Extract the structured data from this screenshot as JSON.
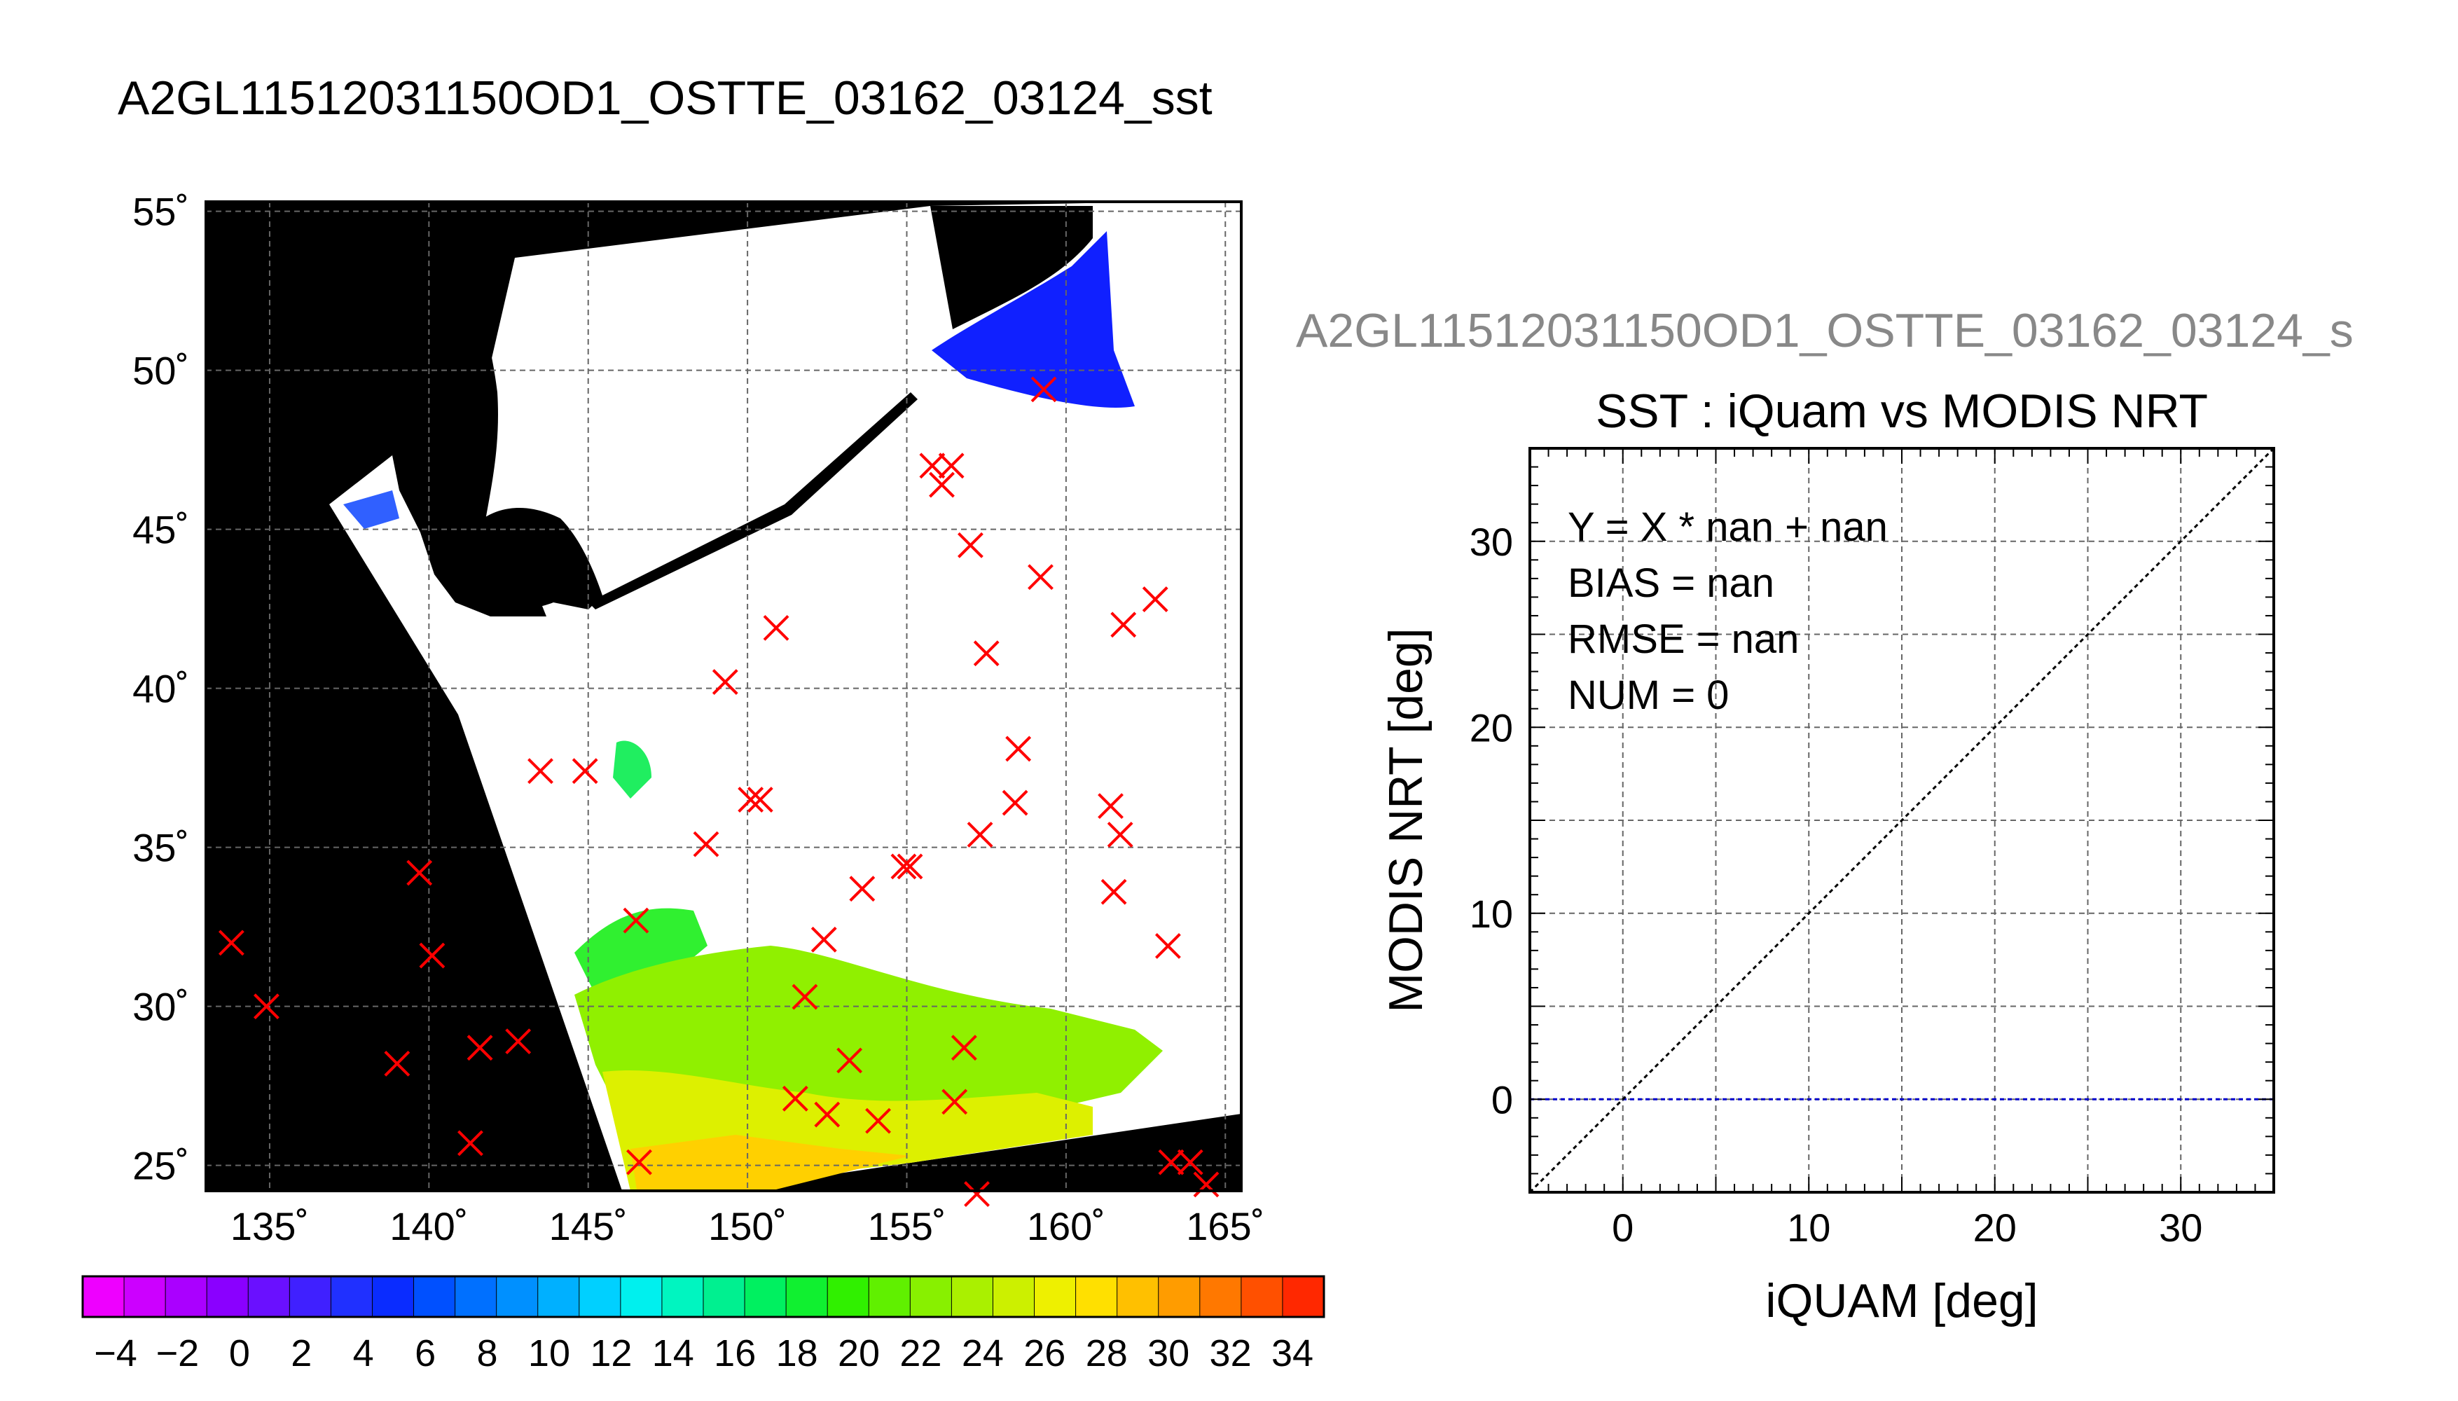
{
  "main_title": "A2GL11512031150OD1_OSTTE_03162_03124_sst",
  "right_title": "A2GL11512031150OD1_OSTTE_03162_03124_s",
  "colors": {
    "land": "#000000",
    "no_data": "#ffffff",
    "marker": "#ff0000",
    "grid": "#555555",
    "zero_line": "#0000cc",
    "diag_line": "#000000"
  },
  "chart_data": [
    {
      "type": "scatter",
      "xlim": [
        133,
        165.5
      ],
      "ylim": [
        24.2,
        55.3
      ],
      "x_ticks": [
        135,
        140,
        145,
        150,
        155,
        160,
        165
      ],
      "x_tick_labels": [
        "135˚",
        "140˚",
        "145˚",
        "150˚",
        "155˚",
        "160˚",
        "165˚"
      ],
      "y_ticks": [
        25,
        30,
        35,
        40,
        45,
        50,
        55
      ],
      "y_tick_labels": [
        "25˚",
        "30˚",
        "35˚",
        "40˚",
        "45˚",
        "50˚",
        "55˚"
      ],
      "grid": true,
      "series": [
        {
          "marker": "x",
          "points": [
            [
              133.8,
              32.0
            ],
            [
              134.9,
              30.0
            ],
            [
              139.0,
              28.2
            ],
            [
              139.7,
              34.2
            ],
            [
              140.1,
              31.6
            ],
            [
              141.3,
              25.7
            ],
            [
              141.6,
              28.7
            ],
            [
              142.8,
              28.9
            ],
            [
              143.5,
              37.4
            ],
            [
              144.9,
              37.4
            ],
            [
              146.5,
              32.7
            ],
            [
              146.6,
              25.1
            ],
            [
              148.7,
              35.1
            ],
            [
              149.3,
              40.2
            ],
            [
              150.1,
              36.5
            ],
            [
              150.4,
              36.5
            ],
            [
              150.9,
              41.9
            ],
            [
              151.5,
              27.1
            ],
            [
              151.8,
              30.3
            ],
            [
              152.4,
              32.1
            ],
            [
              152.5,
              26.6
            ],
            [
              153.2,
              28.3
            ],
            [
              153.6,
              33.7
            ],
            [
              154.1,
              26.4
            ],
            [
              154.9,
              34.4
            ],
            [
              155.1,
              34.4
            ],
            [
              155.8,
              47.0
            ],
            [
              156.1,
              46.4
            ],
            [
              156.4,
              47.0
            ],
            [
              156.5,
              27.0
            ],
            [
              156.8,
              28.7
            ],
            [
              157.0,
              44.5
            ],
            [
              157.2,
              24.1
            ],
            [
              157.3,
              35.4
            ],
            [
              157.5,
              41.1
            ],
            [
              158.4,
              36.4
            ],
            [
              158.5,
              38.1
            ],
            [
              159.2,
              43.5
            ],
            [
              159.3,
              49.4
            ],
            [
              161.4,
              36.3
            ],
            [
              161.5,
              33.6
            ],
            [
              161.7,
              35.4
            ],
            [
              161.8,
              42.0
            ],
            [
              162.8,
              42.8
            ],
            [
              163.2,
              31.9
            ],
            [
              163.3,
              25.1
            ],
            [
              163.9,
              25.1
            ],
            [
              164.4,
              24.4
            ]
          ]
        }
      ]
    },
    {
      "type": "scatter",
      "title": "SST : iQuam vs MODIS NRT",
      "xlabel": "iQUAM [deg]",
      "ylabel": "MODIS NRT [deg]",
      "xlim": [
        -5,
        35
      ],
      "ylim": [
        -5,
        35
      ],
      "x_ticks": [
        0,
        10,
        20,
        30
      ],
      "y_ticks": [
        0,
        10,
        20,
        30
      ],
      "grid_step": 5,
      "grid": true,
      "points": [],
      "stats": [
        "Y = X * nan + nan",
        "BIAS = nan",
        "RMSE = nan",
        "NUM = 0"
      ],
      "reference_lines": [
        {
          "kind": "diagonal",
          "from": [
            -5,
            -5
          ],
          "to": [
            35,
            35
          ]
        },
        {
          "kind": "horizontal",
          "y": 0
        }
      ]
    }
  ],
  "colorbar": {
    "label_values": [
      "−4",
      "−2",
      "0",
      "2",
      "4",
      "6",
      "8",
      "10",
      "12",
      "14",
      "16",
      "18",
      "20",
      "22",
      "24",
      "26",
      "28",
      "30",
      "32",
      "34"
    ],
    "bin_colors": [
      "#ee00ff",
      "#cc00ff",
      "#aa00ff",
      "#8a00ff",
      "#6a10ff",
      "#4020ff",
      "#2030ff",
      "#0a2cff",
      "#0050ff",
      "#0070ff",
      "#0090ff",
      "#00b0ff",
      "#00d0ff",
      "#00f0ee",
      "#00f5c0",
      "#00f090",
      "#00f060",
      "#10f030",
      "#30f000",
      "#60f000",
      "#88f000",
      "#aaf000",
      "#ccf000",
      "#eef000",
      "#ffe000",
      "#ffc000",
      "#ff9c00",
      "#ff7800",
      "#ff5000",
      "#ff2800"
    ]
  }
}
